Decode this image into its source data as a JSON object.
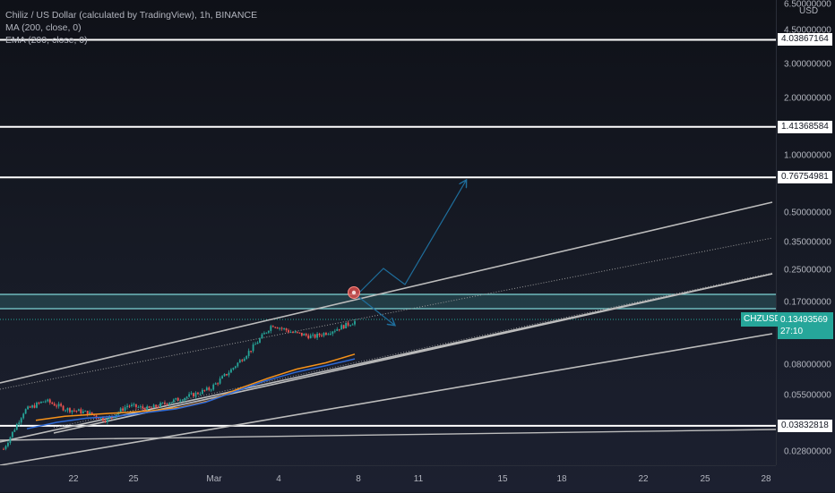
{
  "legend": {
    "title": "Chiliz / US Dollar (calculated by TradingView), 1h, BINANCE",
    "ma": "MA (200, close, 0)",
    "ema": "EMA (200, close, 0)"
  },
  "price_scale": {
    "currency": "USD",
    "ticks": [
      "6.50000000",
      "4.50000000",
      "3.00000000",
      "2.00000000",
      "1.00000000",
      "0.76754981",
      "0.50000000",
      "0.35000000",
      "0.25000000",
      "0.17000000",
      "0.08000000",
      "0.05500000",
      "0.02800000"
    ]
  },
  "levels": [
    "4.03867164",
    "1.41368584",
    "0.76754981",
    "0.03832818"
  ],
  "current": {
    "symbol": "CHZUSD",
    "price": "0.13493569",
    "countdown": "27:10"
  },
  "time_scale": {
    "ticks": [
      "22",
      "25",
      "Mar",
      "4",
      "8",
      "11",
      "15",
      "18",
      "22",
      "25",
      "28"
    ]
  },
  "colors": {
    "background": "#131722",
    "candle_up": "#26a69a",
    "candle_down": "#ef5350",
    "ma": "#f7931a",
    "ema": "#2962ff",
    "level_line": "#ffffff",
    "zone": "#4fb6b8",
    "projection": "#1f6e9c",
    "trendline": "#b5b5b5"
  },
  "chart_data": {
    "type": "candlestick",
    "symbol": "CHZUSD",
    "interval": "1h",
    "y_scale": "log",
    "ylim": [
      0.0235,
      7.0
    ],
    "x_ticks": [
      "22",
      "25",
      "Mar",
      "4",
      "8",
      "11",
      "15",
      "18",
      "22",
      "25",
      "28"
    ],
    "series": [
      {
        "name": "CHZUSD",
        "approx_close_path": [
          0.029,
          0.046,
          0.052,
          0.047,
          0.045,
          0.041,
          0.049,
          0.047,
          0.051,
          0.055,
          0.06,
          0.075,
          0.097,
          0.13,
          0.118,
          0.112,
          0.122,
          0.135
        ]
      },
      {
        "name": "MA (200, close, 0)",
        "approx_path": [
          0.041,
          0.043,
          0.044,
          0.045,
          0.046,
          0.048,
          0.052,
          0.06,
          0.068,
          0.076,
          0.082,
          0.091
        ]
      },
      {
        "name": "EMA (200, close, 0)",
        "approx_path": [
          0.037,
          0.04,
          0.042,
          0.043,
          0.045,
          0.047,
          0.051,
          0.058,
          0.066,
          0.073,
          0.079,
          0.086
        ]
      }
    ],
    "horizontal_levels": [
      4.03867164,
      1.41368584,
      0.76754981,
      0.03832818
    ],
    "resistance_zone": [
      0.146,
      0.177
    ],
    "last_price": 0.13493569
  }
}
